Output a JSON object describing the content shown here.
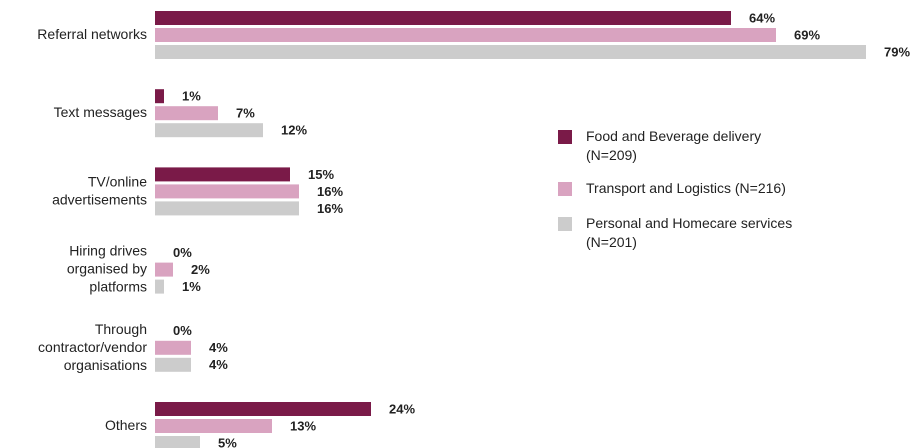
{
  "chart_data": {
    "type": "bar",
    "orientation": "horizontal",
    "categories": [
      "Referral networks",
      "Text messages",
      "TV/online advertisements",
      "Hiring drives organised by platforms",
      "Through contractor/vendor organisations",
      "Others"
    ],
    "series": [
      {
        "name": "Food and Beverage delivery (N=209)",
        "color": "#7a1a48",
        "values": [
          64,
          1,
          15,
          0,
          0,
          24
        ],
        "value_labels": [
          "64%",
          "1%",
          "15%",
          "0%",
          "0%",
          "24%"
        ]
      },
      {
        "name": "Transport and Logistics (N=216)",
        "color": "#d9a3c0",
        "values": [
          69,
          7,
          16,
          2,
          4,
          13
        ],
        "value_labels": [
          "69%",
          "7%",
          "16%",
          "2%",
          "4%",
          "13%"
        ]
      },
      {
        "name": "Personal and Homecare services (N=201)",
        "color": "#cccccc",
        "values": [
          79,
          12,
          16,
          1,
          4,
          5
        ],
        "value_labels": [
          "79%",
          "12%",
          "16%",
          "1%",
          "4%",
          "5%"
        ]
      }
    ]
  }
}
